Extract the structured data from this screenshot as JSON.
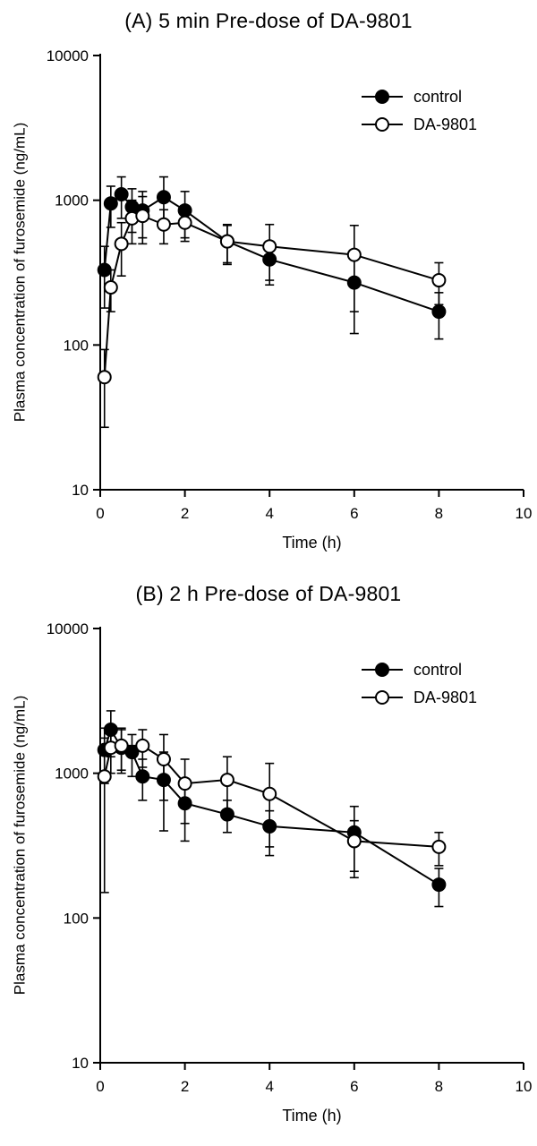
{
  "colors": {
    "foreground": "#000000",
    "background": "#ffffff",
    "control_marker_fill": "#000000",
    "da9801_marker_fill": "#ffffff"
  },
  "chart_data": [
    {
      "type": "line",
      "title": "(A) 5 min Pre-dose of DA-9801",
      "xlabel": "Time (h)",
      "ylabel": "Plasma concentration of furosemide (ng/mL)",
      "xlim": [
        0,
        10
      ],
      "ylim": [
        10,
        10000
      ],
      "yscale": "log",
      "xticks": [
        0,
        2,
        4,
        6,
        8,
        10
      ],
      "yticks": [
        10,
        100,
        1000,
        10000
      ],
      "grid": false,
      "legend_position": "top-right",
      "error_bars": true,
      "series": [
        {
          "name": "control",
          "marker": "filled",
          "points": [
            [
              0.1,
              330,
              150
            ],
            [
              0.25,
              950,
              300
            ],
            [
              0.5,
              1100,
              350
            ],
            [
              0.75,
              900,
              300
            ],
            [
              1,
              850,
              300
            ],
            [
              1.5,
              1050,
              400
            ],
            [
              2,
              850,
              300
            ],
            [
              3,
              520,
              150
            ],
            [
              4,
              390,
              130
            ],
            [
              6,
              270,
              150
            ],
            [
              8,
              170,
              60
            ]
          ]
        },
        {
          "name": "DA-9801",
          "marker": "open",
          "points": [
            [
              0.1,
              60,
              33
            ],
            [
              0.25,
              250,
              80
            ],
            [
              0.5,
              500,
              200
            ],
            [
              0.75,
              750,
              250
            ],
            [
              1,
              780,
              280
            ],
            [
              1.5,
              680,
              180
            ],
            [
              2,
              700,
              180
            ],
            [
              3,
              520,
              160
            ],
            [
              4,
              480,
              200
            ],
            [
              6,
              420,
              250
            ],
            [
              8,
              280,
              90
            ]
          ]
        }
      ]
    },
    {
      "type": "line",
      "title": "(B) 2 h Pre-dose of DA-9801",
      "xlabel": "Time (h)",
      "ylabel": "Plasma concentration of furosemide (ng/mL)",
      "xlim": [
        0,
        10
      ],
      "ylim": [
        10,
        10000
      ],
      "yscale": "log",
      "xticks": [
        0,
        2,
        4,
        6,
        8,
        10
      ],
      "yticks": [
        10,
        100,
        1000,
        10000
      ],
      "grid": false,
      "legend_position": "top-right",
      "error_bars": true,
      "series": [
        {
          "name": "control",
          "marker": "filled",
          "points": [
            [
              0.1,
              1450,
              600
            ],
            [
              0.25,
              2000,
              700
            ],
            [
              0.5,
              1500,
              500
            ],
            [
              0.75,
              1400,
              450
            ],
            [
              1,
              950,
              300
            ],
            [
              1.5,
              900,
              500
            ],
            [
              2,
              620,
              280
            ],
            [
              3,
              520,
              130
            ],
            [
              4,
              430,
              120
            ],
            [
              6,
              390,
              200
            ],
            [
              8,
              170,
              50
            ]
          ]
        },
        {
          "name": "DA-9801",
          "marker": "open",
          "points": [
            [
              0.1,
              950,
              800
            ],
            [
              0.25,
              1500,
              500
            ],
            [
              0.5,
              1550,
              500
            ],
            [
              1,
              1550,
              450
            ],
            [
              1.5,
              1250,
              600
            ],
            [
              2,
              850,
              400
            ],
            [
              3,
              900,
              400
            ],
            [
              4,
              720,
              450
            ],
            [
              6,
              340,
              130
            ],
            [
              8,
              310,
              80
            ]
          ]
        }
      ]
    }
  ]
}
